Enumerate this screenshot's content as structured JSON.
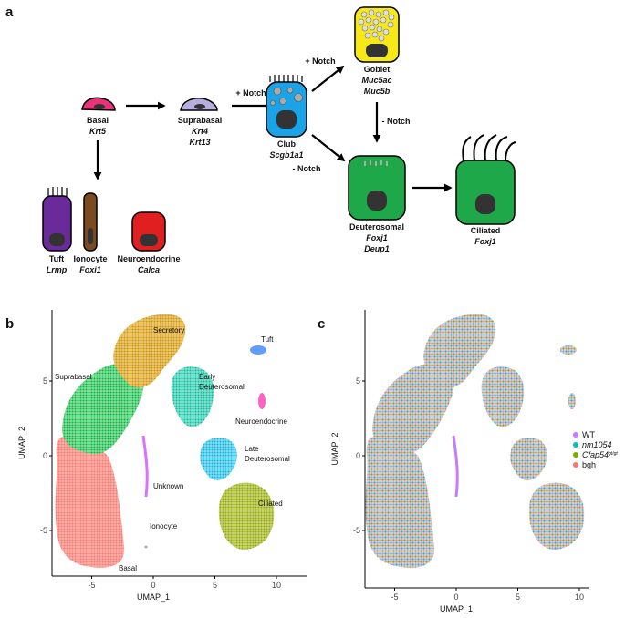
{
  "panels": {
    "a": {
      "label": "a",
      "cells": [
        {
          "name": "Basal",
          "markers": [
            "Krt5"
          ]
        },
        {
          "name": "Suprabasal",
          "markers": [
            "Krt4",
            "Krt13"
          ]
        },
        {
          "name": "Club",
          "markers": [
            "Scgb1a1"
          ]
        },
        {
          "name": "Goblet",
          "markers": [
            "Muc5ac",
            "Muc5b"
          ]
        },
        {
          "name": "Deuterosomal",
          "markers": [
            "Foxj1",
            "Deup1"
          ]
        },
        {
          "name": "Ciliated",
          "markers": [
            "Foxj1"
          ]
        },
        {
          "name": "Tuft",
          "markers": [
            "Lrmp"
          ]
        },
        {
          "name": "Ionocyte",
          "markers": [
            "Foxi1"
          ]
        },
        {
          "name": "Neuroendocrine",
          "markers": [
            "Calca"
          ]
        }
      ],
      "transitions": [
        "+ Notch",
        "+ Notch",
        "- Notch",
        "- Notch"
      ]
    },
    "b": {
      "label": "b",
      "x_label": "UMAP_1",
      "y_label": "UMAP_2",
      "xticks": [
        -5,
        0,
        5,
        10
      ],
      "yticks": [
        -5,
        0,
        5
      ],
      "clusters": [
        "Secretory",
        "Tuft",
        "Suprabasal",
        "Early",
        "Deuterosomal",
        "Neuroendocrine",
        "Late",
        "Deuterosomal",
        "Unknown",
        "Ciliated",
        "Ionocyte",
        "Basal"
      ]
    },
    "c": {
      "label": "c",
      "x_label": "UMAP_1",
      "y_label": "UMAP_2",
      "xticks": [
        -5,
        0,
        5,
        10
      ],
      "yticks": [
        -5,
        0,
        5
      ],
      "legend": [
        {
          "text": "WT"
        },
        {
          "text": "nm1054"
        },
        {
          "text": "Cfap54",
          "superscript": "gt/gt"
        },
        {
          "text": "bgh"
        }
      ]
    }
  }
}
